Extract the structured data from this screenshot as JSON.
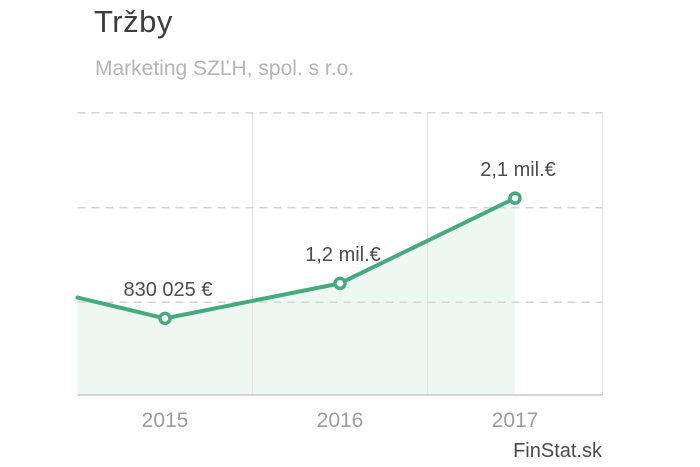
{
  "header": {
    "title": "Tržby",
    "subtitle": "Marketing SZĽH, spol. s r.o."
  },
  "footer": {
    "watermark": "FinStat.sk"
  },
  "chart_data": {
    "type": "line",
    "title": "Tržby",
    "subtitle": "Marketing SZĽH, spol. s r.o.",
    "categories": [
      "2015",
      "2016",
      "2017"
    ],
    "values": [
      830025,
      1200000,
      2100000
    ],
    "point_labels": [
      "830 025 €",
      "1,2 mil.€",
      "2,1 mil.€"
    ],
    "left_edge_entry_value": 1050000,
    "currency": "EUR",
    "ylim": [
      0,
      3100000
    ],
    "y_gridlines": [
      1000000,
      2000000,
      3000000
    ],
    "legend": "none",
    "grid": {
      "horizontal": "dashed",
      "vertical": "solid category boundaries"
    },
    "marker": "open-circle",
    "colors": {
      "line": "#45ab7e",
      "area_fill": "#eef7f2",
      "grid_horizontal": "#d4d4d4",
      "grid_vertical": "#e2e2e2",
      "axis": "#c9c9c9",
      "title_text": "#3d3d3d",
      "subtitle_text": "#b5b5b5",
      "point_label_text": "#4c4c4c",
      "tick_label_text": "#9d9d9d",
      "watermark_text": "#4a4a4a"
    }
  }
}
